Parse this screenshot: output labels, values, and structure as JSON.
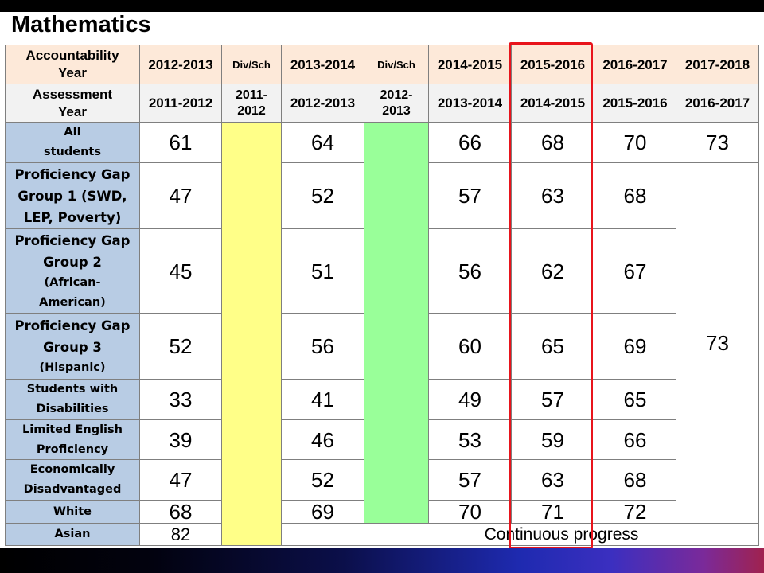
{
  "title": "Mathematics",
  "colors": {
    "header_row1": "#fde9d9",
    "header_row2": "#f2f2f2",
    "label_column": "#b8cce4",
    "div_sch_yellow": "#ffff88",
    "div_sch_green": "#99ff99",
    "highlight": "#e8141c",
    "grid_lines": "#7f7f7f"
  },
  "table": {
    "accountability_row": {
      "label_lines": [
        "Accountability",
        "Year"
      ],
      "columns": [
        "2012-2013",
        "Div/Sch",
        "2013-2014",
        "Div/Sch",
        "2014-2015",
        "2015-2016",
        "2016-2017",
        "2017-2018"
      ]
    },
    "assessment_row": {
      "label_lines": [
        "Assessment",
        "Year"
      ],
      "columns": [
        "2011-2012",
        [
          "2011-",
          "2012"
        ],
        "2012-2013",
        [
          "2012-",
          "2013"
        ],
        "2013-2014",
        "2014-2015",
        "2015-2016",
        "2016-2017"
      ]
    },
    "rows": [
      {
        "label_lines": [
          "All",
          "students"
        ],
        "values": [
          61,
          64,
          66,
          68,
          70,
          73
        ]
      },
      {
        "label_lines": [
          "Proficiency Gap",
          "Group 1 (SWD,",
          "LEP, Poverty)"
        ],
        "values": [
          47,
          52,
          57,
          63,
          68
        ]
      },
      {
        "label_lines": [
          "Proficiency Gap",
          "Group 2",
          "(African-",
          "American)"
        ],
        "values": [
          45,
          51,
          56,
          62,
          67
        ]
      },
      {
        "label_lines": [
          "Proficiency Gap",
          "Group 3",
          "(Hispanic)"
        ],
        "values": [
          52,
          56,
          60,
          65,
          69
        ]
      },
      {
        "label_lines": [
          "Students with",
          "Disabilities"
        ],
        "values": [
          33,
          41,
          49,
          57,
          65
        ]
      },
      {
        "label_lines": [
          "Limited English",
          "Proficiency"
        ],
        "values": [
          39,
          46,
          53,
          59,
          66
        ]
      },
      {
        "label_lines": [
          "Economically",
          "Disadvantaged"
        ],
        "values": [
          47,
          52,
          57,
          63,
          68
        ]
      },
      {
        "label_lines": [
          "White"
        ],
        "values": [
          68,
          69,
          70,
          71,
          72
        ]
      },
      {
        "label_lines": [
          "Asian"
        ],
        "values": [
          82
        ],
        "continuous_progress": "Continuous progress"
      }
    ],
    "subgroups_2017_2018_target": 73
  }
}
